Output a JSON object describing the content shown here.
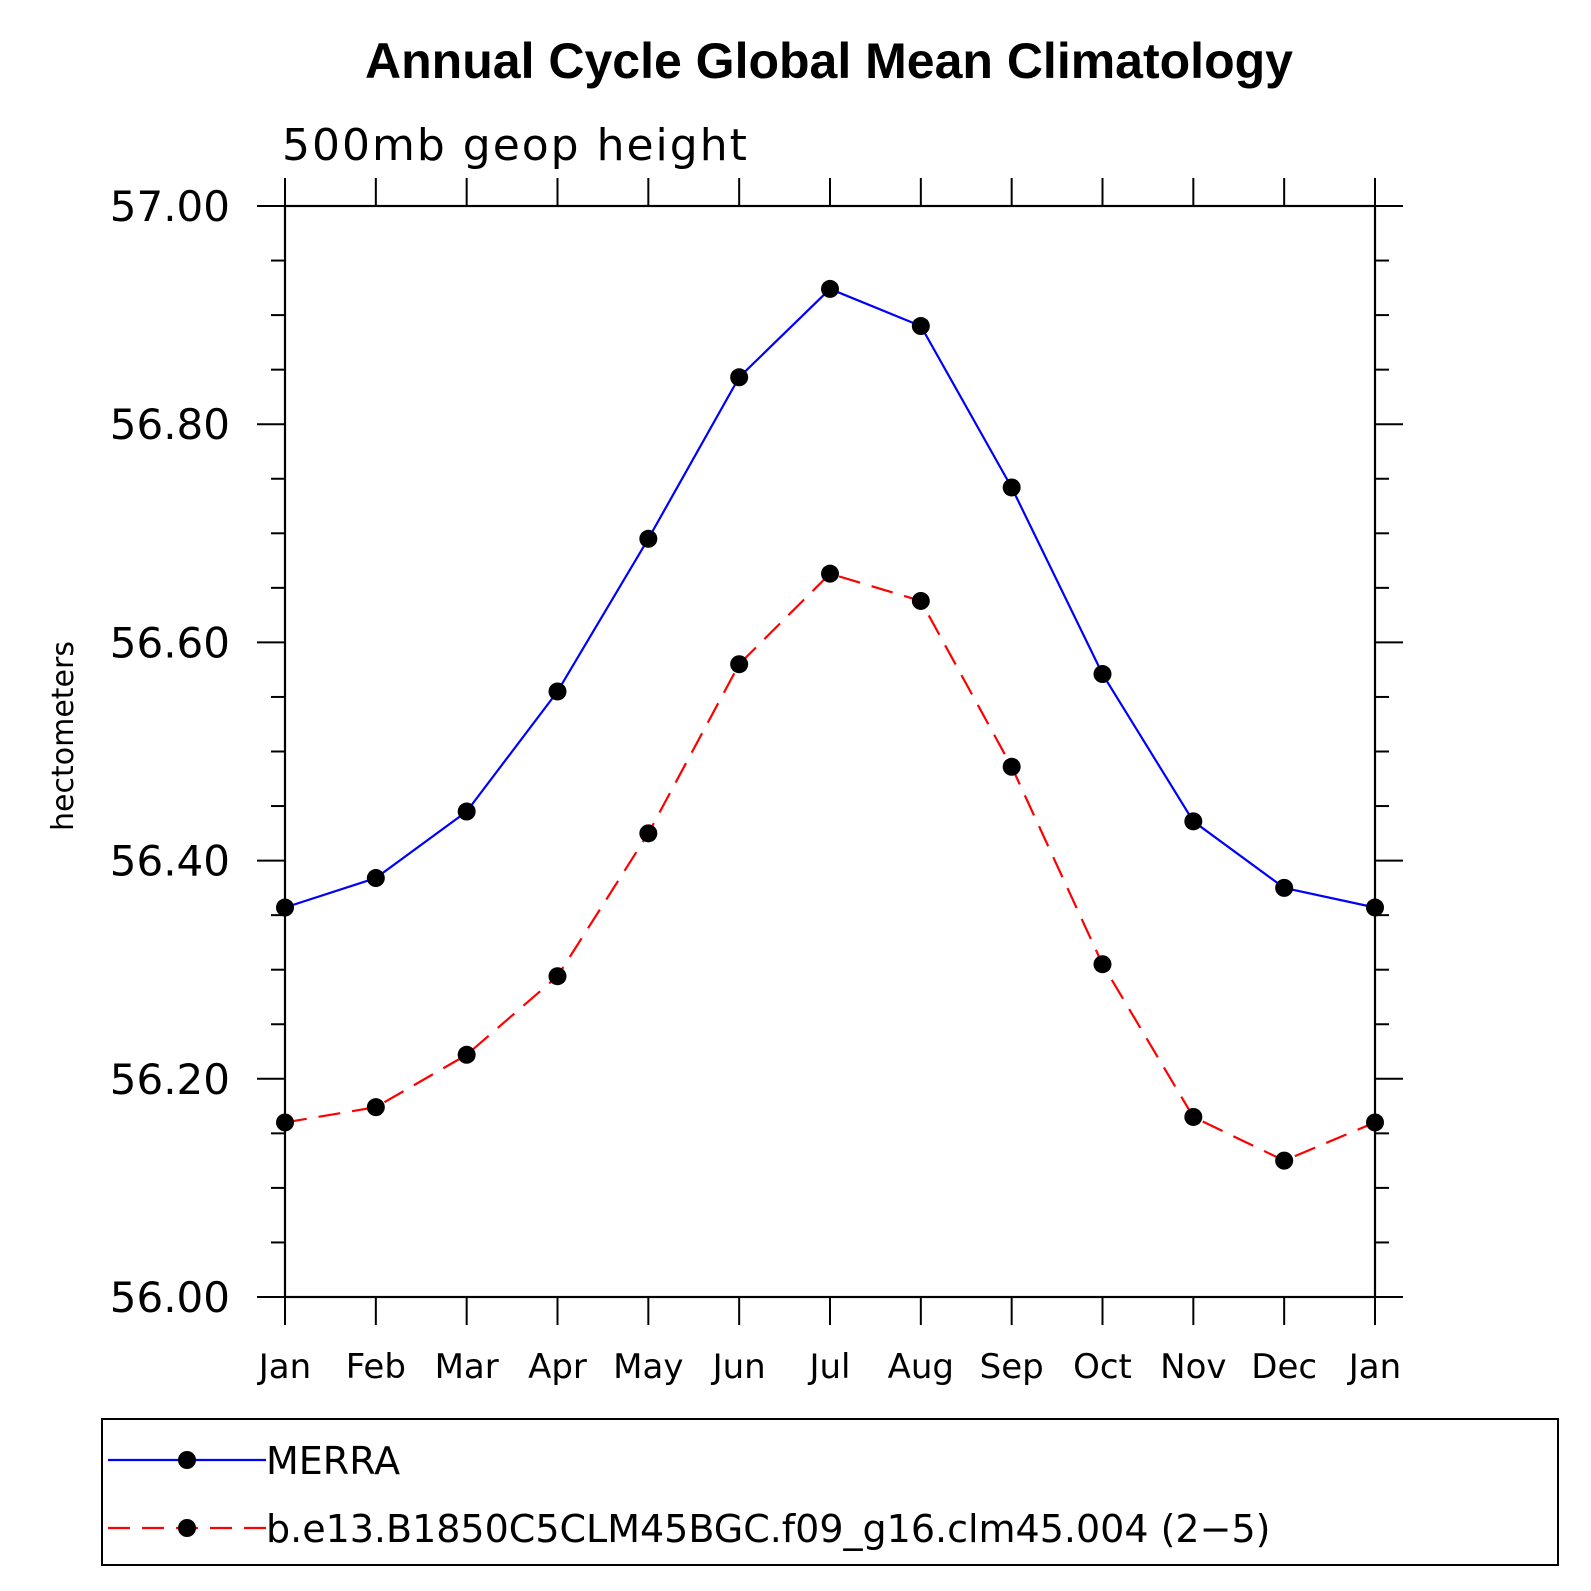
{
  "chart_data": {
    "type": "line",
    "title": "Annual Cycle Global Mean Climatology",
    "subtitle": "500mb geop height",
    "xlabel": "",
    "ylabel": "hectometers",
    "categories": [
      "Jan",
      "Feb",
      "Mar",
      "Apr",
      "May",
      "Jun",
      "Jul",
      "Aug",
      "Sep",
      "Oct",
      "Nov",
      "Dec",
      "Jan"
    ],
    "ylim": [
      56.0,
      57.0
    ],
    "yticks": [
      "56.00",
      "56.20",
      "56.40",
      "56.60",
      "56.80",
      "57.00"
    ],
    "grid": false,
    "legend_position": "bottom",
    "series": [
      {
        "name": "MERRA",
        "color": "#0000ff",
        "line_style": "solid",
        "marker": "filled-circle",
        "values": [
          56.357,
          56.384,
          56.445,
          56.555,
          56.695,
          56.843,
          56.924,
          56.89,
          56.742,
          56.571,
          56.436,
          56.375,
          56.357
        ]
      },
      {
        "name": "b.e13.B1850C5CLM45BGC.f09_g16.clm45.004 (2−5)",
        "color": "#ff0000",
        "line_style": "dashed",
        "marker": "filled-circle",
        "values": [
          56.16,
          56.174,
          56.222,
          56.294,
          56.425,
          56.58,
          56.663,
          56.638,
          56.486,
          56.305,
          56.165,
          56.125,
          56.16
        ]
      }
    ]
  }
}
